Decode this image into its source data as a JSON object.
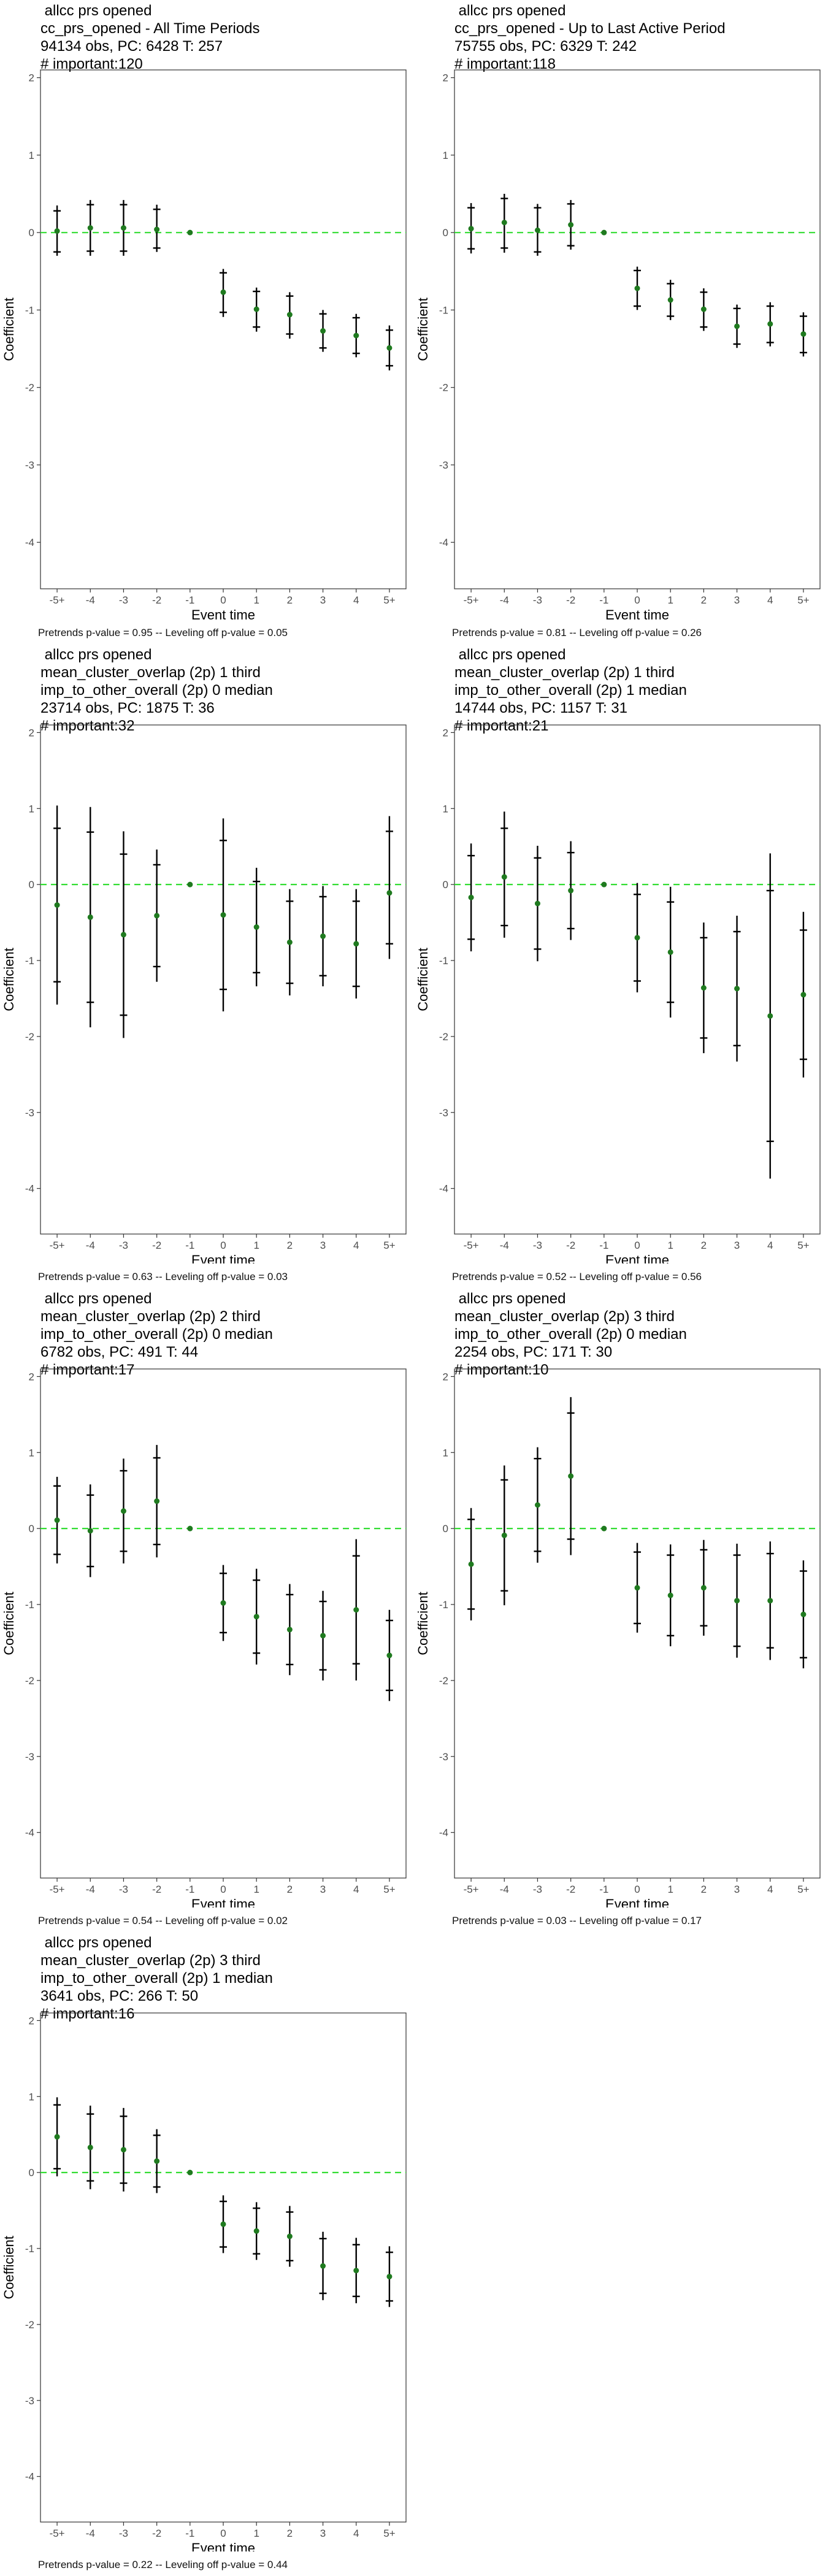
{
  "style": {
    "point_color": "#1f7a1f",
    "zero_line_color": "#33dd33",
    "bar_color": "#000000"
  },
  "chart_data": [
    {
      "type": "scatter",
      "title_lines": [
        "allcc prs opened",
        "cc_prs_opened - All Time Periods",
        "94134 obs, PC: 6428 T: 257",
        "# important:120"
      ],
      "footnote": "Pretrends p-value = 0.95 -- Leveling off p-value = 0.05",
      "xlabel": "Event time",
      "ylabel": "Coefficient",
      "categories": [
        "-5+",
        "-4",
        "-3",
        "-2",
        "-1",
        "0",
        "1",
        "2",
        "3",
        "4",
        "5+"
      ],
      "yticks": [
        2,
        1,
        0,
        -1,
        -2,
        -3,
        -4
      ],
      "ylim": [
        -4.6,
        2.1
      ],
      "values": [
        0.02,
        0.06,
        0.06,
        0.04,
        0.0,
        -0.77,
        -0.99,
        -1.06,
        -1.27,
        -1.33,
        -1.49
      ],
      "ci95": [
        [
          -0.3,
          0.35
        ],
        [
          -0.3,
          0.42
        ],
        [
          -0.3,
          0.42
        ],
        [
          -0.25,
          0.36
        ],
        [
          0.0,
          0.0
        ],
        [
          -1.09,
          -0.47
        ],
        [
          -1.28,
          -0.71
        ],
        [
          -1.37,
          -0.77
        ],
        [
          -1.54,
          -1.0
        ],
        [
          -1.61,
          -1.05
        ],
        [
          -1.78,
          -1.2
        ]
      ],
      "ci90": [
        [
          -0.25,
          0.28
        ],
        [
          -0.24,
          0.36
        ],
        [
          -0.24,
          0.36
        ],
        [
          -0.2,
          0.3
        ],
        [
          0.0,
          0.0
        ],
        [
          -1.03,
          -0.52
        ],
        [
          -1.22,
          -0.76
        ],
        [
          -1.31,
          -0.82
        ],
        [
          -1.49,
          -1.05
        ],
        [
          -1.56,
          -1.1
        ],
        [
          -1.72,
          -1.26
        ]
      ],
      "grid": false,
      "zero_line": true,
      "legend": "none"
    },
    {
      "type": "scatter",
      "title_lines": [
        "allcc prs opened",
        "cc_prs_opened - Up to Last Active Period",
        "75755 obs, PC: 6329 T: 242",
        "# important:118"
      ],
      "footnote": "Pretrends p-value = 0.81 -- Leveling off p-value = 0.26",
      "xlabel": "Event time",
      "ylabel": "Coefficient",
      "categories": [
        "-5+",
        "-4",
        "-3",
        "-2",
        "-1",
        "0",
        "1",
        "2",
        "3",
        "4",
        "5+"
      ],
      "yticks": [
        2,
        1,
        0,
        -1,
        -2,
        -3,
        -4
      ],
      "ylim": [
        -4.6,
        2.1
      ],
      "values": [
        0.05,
        0.13,
        0.03,
        0.1,
        0.0,
        -0.72,
        -0.87,
        -0.99,
        -1.21,
        -1.18,
        -1.31
      ],
      "ci95": [
        [
          -0.27,
          0.38
        ],
        [
          -0.26,
          0.5
        ],
        [
          -0.3,
          0.37
        ],
        [
          -0.22,
          0.42
        ],
        [
          0.0,
          0.0
        ],
        [
          -1.0,
          -0.44
        ],
        [
          -1.13,
          -0.61
        ],
        [
          -1.27,
          -0.72
        ],
        [
          -1.49,
          -0.93
        ],
        [
          -1.47,
          -0.9
        ],
        [
          -1.6,
          -1.03
        ]
      ],
      "ci90": [
        [
          -0.21,
          0.32
        ],
        [
          -0.2,
          0.44
        ],
        [
          -0.25,
          0.32
        ],
        [
          -0.17,
          0.37
        ],
        [
          0.0,
          0.0
        ],
        [
          -0.95,
          -0.49
        ],
        [
          -1.08,
          -0.66
        ],
        [
          -1.22,
          -0.77
        ],
        [
          -1.44,
          -0.98
        ],
        [
          -1.42,
          -0.95
        ],
        [
          -1.55,
          -1.08
        ]
      ],
      "grid": false,
      "zero_line": true,
      "legend": "none"
    },
    {
      "type": "scatter",
      "title_lines": [
        "allcc prs opened",
        "mean_cluster_overlap (2p) 1 third",
        "imp_to_other_overall (2p) 0 median",
        "23714 obs, PC: 1875 T: 36",
        "# important:32"
      ],
      "footnote": "Pretrends p-value = 0.63 -- Leveling off p-value = 0.03",
      "xlabel": "Event time",
      "ylabel": "Coefficient",
      "categories": [
        "-5+",
        "-4",
        "-3",
        "-2",
        "-1",
        "0",
        "1",
        "2",
        "3",
        "4",
        "5+"
      ],
      "yticks": [
        2,
        1,
        0,
        -1,
        -2,
        -3,
        -4
      ],
      "ylim": [
        -4.6,
        2.1
      ],
      "values": [
        -0.27,
        -0.43,
        -0.66,
        -0.41,
        0.0,
        -0.4,
        -0.56,
        -0.76,
        -0.68,
        -0.78,
        -0.11
      ],
      "ci95": [
        [
          -1.58,
          1.04
        ],
        [
          -1.88,
          1.02
        ],
        [
          -2.02,
          0.7
        ],
        [
          -1.28,
          0.46
        ],
        [
          0.0,
          0.0
        ],
        [
          -1.67,
          0.87
        ],
        [
          -1.34,
          0.22
        ],
        [
          -1.46,
          -0.06
        ],
        [
          -1.34,
          -0.02
        ],
        [
          -1.5,
          -0.06
        ],
        [
          -0.98,
          0.9
        ]
      ],
      "ci90": [
        [
          -1.28,
          0.74
        ],
        [
          -1.55,
          0.69
        ],
        [
          -1.72,
          0.4
        ],
        [
          -1.08,
          0.26
        ],
        [
          0.0,
          0.0
        ],
        [
          -1.38,
          0.58
        ],
        [
          -1.16,
          0.04
        ],
        [
          -1.3,
          -0.22
        ],
        [
          -1.2,
          -0.16
        ],
        [
          -1.34,
          -0.22
        ],
        [
          -0.78,
          0.7
        ]
      ],
      "grid": false,
      "zero_line": true,
      "legend": "none"
    },
    {
      "type": "scatter",
      "title_lines": [
        "allcc prs opened",
        "mean_cluster_overlap (2p) 1 third",
        "imp_to_other_overall (2p) 1 median",
        "14744 obs, PC: 1157 T: 31",
        "# important:21"
      ],
      "footnote": "Pretrends p-value = 0.52 -- Leveling off p-value = 0.56",
      "xlabel": "Event time",
      "ylabel": "Coefficient",
      "categories": [
        "-5+",
        "-4",
        "-3",
        "-2",
        "-1",
        "0",
        "1",
        "2",
        "3",
        "4",
        "5+"
      ],
      "yticks": [
        2,
        1,
        0,
        -1,
        -2,
        -3,
        -4
      ],
      "ylim": [
        -4.6,
        2.1
      ],
      "values": [
        -0.17,
        0.1,
        -0.25,
        -0.08,
        0.0,
        -0.7,
        -0.89,
        -1.36,
        -1.37,
        -1.73,
        -1.45
      ],
      "ci95": [
        [
          -0.88,
          0.54
        ],
        [
          -0.7,
          0.96
        ],
        [
          -1.01,
          0.51
        ],
        [
          -0.73,
          0.57
        ],
        [
          0.0,
          0.0
        ],
        [
          -1.42,
          0.02
        ],
        [
          -1.75,
          -0.03
        ],
        [
          -2.22,
          -0.5
        ],
        [
          -2.33,
          -0.41
        ],
        [
          -3.87,
          0.41
        ],
        [
          -2.54,
          -0.36
        ]
      ],
      "ci90": [
        [
          -0.72,
          0.38
        ],
        [
          -0.54,
          0.74
        ],
        [
          -0.85,
          0.35
        ],
        [
          -0.58,
          0.42
        ],
        [
          0.0,
          0.0
        ],
        [
          -1.27,
          -0.13
        ],
        [
          -1.55,
          -0.23
        ],
        [
          -2.02,
          -0.7
        ],
        [
          -2.12,
          -0.62
        ],
        [
          -3.38,
          -0.08
        ],
        [
          -2.3,
          -0.6
        ]
      ],
      "grid": false,
      "zero_line": true,
      "legend": "none"
    },
    {
      "type": "scatter",
      "title_lines": [
        "allcc prs opened",
        "mean_cluster_overlap (2p) 2 third",
        "imp_to_other_overall (2p) 0 median",
        "6782 obs, PC: 491 T: 44",
        "# important:17"
      ],
      "footnote": "Pretrends p-value = 0.54 -- Leveling off p-value = 0.02",
      "xlabel": "Event time",
      "ylabel": "Coefficient",
      "categories": [
        "-5+",
        "-4",
        "-3",
        "-2",
        "-1",
        "0",
        "1",
        "2",
        "3",
        "4",
        "5+"
      ],
      "yticks": [
        2,
        1,
        0,
        -1,
        -2,
        -3,
        -4
      ],
      "ylim": [
        -4.6,
        2.1
      ],
      "values": [
        0.11,
        -0.03,
        0.23,
        0.36,
        0.0,
        -0.98,
        -1.16,
        -1.33,
        -1.41,
        -1.07,
        -1.67
      ],
      "ci95": [
        [
          -0.46,
          0.68
        ],
        [
          -0.64,
          0.58
        ],
        [
          -0.46,
          0.92
        ],
        [
          -0.38,
          1.1
        ],
        [
          0.0,
          0.0
        ],
        [
          -1.48,
          -0.48
        ],
        [
          -1.79,
          -0.53
        ],
        [
          -1.93,
          -0.73
        ],
        [
          -2.0,
          -0.82
        ],
        [
          -2.0,
          -0.14
        ],
        [
          -2.27,
          -1.07
        ]
      ],
      "ci90": [
        [
          -0.34,
          0.56
        ],
        [
          -0.5,
          0.44
        ],
        [
          -0.3,
          0.76
        ],
        [
          -0.21,
          0.93
        ],
        [
          0.0,
          0.0
        ],
        [
          -1.37,
          -0.59
        ],
        [
          -1.64,
          -0.68
        ],
        [
          -1.79,
          -0.87
        ],
        [
          -1.86,
          -0.96
        ],
        [
          -1.78,
          -0.36
        ],
        [
          -2.13,
          -1.21
        ]
      ],
      "grid": false,
      "zero_line": true,
      "legend": "none"
    },
    {
      "type": "scatter",
      "title_lines": [
        "allcc prs opened",
        "mean_cluster_overlap (2p) 3 third",
        "imp_to_other_overall (2p) 0 median",
        "2254 obs, PC: 171 T: 30",
        "# important:10"
      ],
      "footnote": "Pretrends p-value = 0.03 -- Leveling off p-value = 0.17",
      "xlabel": "Event time",
      "ylabel": "Coefficient",
      "categories": [
        "-5+",
        "-4",
        "-3",
        "-2",
        "-1",
        "0",
        "1",
        "2",
        "3",
        "4",
        "5+"
      ],
      "yticks": [
        2,
        1,
        0,
        -1,
        -2,
        -3,
        -4
      ],
      "ylim": [
        -4.6,
        2.1
      ],
      "values": [
        -0.47,
        -0.09,
        0.31,
        0.69,
        0.0,
        -0.78,
        -0.88,
        -0.78,
        -0.95,
        -0.95,
        -1.13
      ],
      "ci95": [
        [
          -1.21,
          0.27
        ],
        [
          -1.01,
          0.83
        ],
        [
          -0.45,
          1.07
        ],
        [
          -0.35,
          1.73
        ],
        [
          0.0,
          0.0
        ],
        [
          -1.37,
          -0.19
        ],
        [
          -1.55,
          -0.21
        ],
        [
          -1.41,
          -0.15
        ],
        [
          -1.7,
          -0.2
        ],
        [
          -1.73,
          -0.17
        ],
        [
          -1.84,
          -0.42
        ]
      ],
      "ci90": [
        [
          -1.06,
          0.12
        ],
        [
          -0.82,
          0.64
        ],
        [
          -0.3,
          0.92
        ],
        [
          -0.14,
          1.52
        ],
        [
          0.0,
          0.0
        ],
        [
          -1.25,
          -0.31
        ],
        [
          -1.41,
          -0.35
        ],
        [
          -1.28,
          -0.28
        ],
        [
          -1.55,
          -0.35
        ],
        [
          -1.57,
          -0.33
        ],
        [
          -1.7,
          -0.56
        ]
      ],
      "grid": false,
      "zero_line": true,
      "legend": "none"
    },
    {
      "type": "scatter",
      "title_lines": [
        "allcc prs opened",
        "mean_cluster_overlap (2p) 3 third",
        "imp_to_other_overall (2p) 1 median",
        "3641 obs, PC: 266 T: 50",
        "# important:16"
      ],
      "footnote": "Pretrends p-value = 0.22 -- Leveling off p-value = 0.44",
      "xlabel": "Event time",
      "ylabel": "Coefficient",
      "categories": [
        "-5+",
        "-4",
        "-3",
        "-2",
        "-1",
        "0",
        "1",
        "2",
        "3",
        "4",
        "5+"
      ],
      "yticks": [
        2,
        1,
        0,
        -1,
        -2,
        -3,
        -4
      ],
      "ylim": [
        -4.6,
        2.1
      ],
      "values": [
        0.47,
        0.33,
        0.3,
        0.15,
        0.0,
        -0.68,
        -0.77,
        -0.84,
        -1.23,
        -1.29,
        -1.37
      ],
      "ci95": [
        [
          -0.05,
          0.99
        ],
        [
          -0.22,
          0.88
        ],
        [
          -0.25,
          0.85
        ],
        [
          -0.27,
          0.57
        ],
        [
          0.0,
          0.0
        ],
        [
          -1.06,
          -0.3
        ],
        [
          -1.15,
          -0.39
        ],
        [
          -1.24,
          -0.44
        ],
        [
          -1.68,
          -0.78
        ],
        [
          -1.72,
          -0.86
        ],
        [
          -1.77,
          -0.97
        ]
      ],
      "ci90": [
        [
          0.05,
          0.89
        ],
        [
          -0.11,
          0.77
        ],
        [
          -0.14,
          0.74
        ],
        [
          -0.19,
          0.49
        ],
        [
          0.0,
          0.0
        ],
        [
          -0.98,
          -0.38
        ],
        [
          -1.07,
          -0.47
        ],
        [
          -1.16,
          -0.52
        ],
        [
          -1.59,
          -0.87
        ],
        [
          -1.63,
          -0.95
        ],
        [
          -1.69,
          -1.05
        ]
      ],
      "grid": false,
      "zero_line": true,
      "legend": "none"
    }
  ]
}
